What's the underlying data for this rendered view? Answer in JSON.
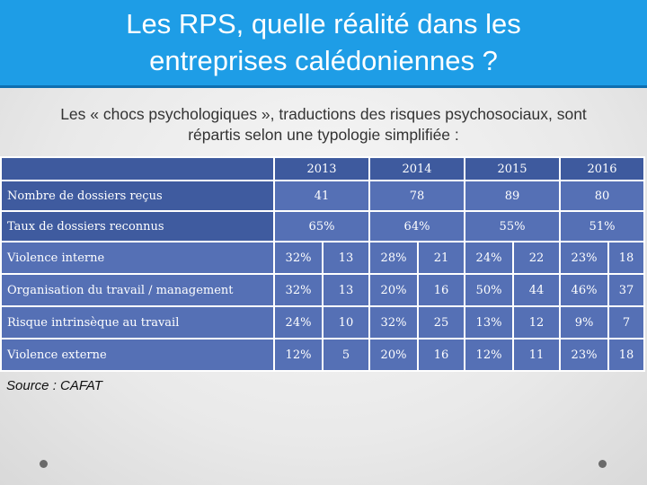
{
  "title": {
    "line1": "Les RPS, quelle réalité dans les",
    "line2": "entreprises calédoniennes ?"
  },
  "subtitle": {
    "line1": "Les « chocs psychologiques », traductions des risques psychosociaux, sont",
    "line2": "répartis selon une typologie simplifiée :"
  },
  "table": {
    "years": [
      "2013",
      "2014",
      "2015",
      "2016"
    ],
    "summary_rows": [
      {
        "label": "Nombre de dossiers reçus",
        "values": [
          "41",
          "78",
          "89",
          "80"
        ]
      },
      {
        "label": "Taux de dossiers reconnus",
        "values": [
          "65%",
          "64%",
          "55%",
          "51%"
        ]
      }
    ],
    "category_rows": [
      {
        "label": "Violence interne",
        "values": [
          "32%",
          "13",
          "28%",
          "21",
          "24%",
          "22",
          "23%",
          "18"
        ]
      },
      {
        "label": "Organisation du travail / management",
        "values": [
          "32%",
          "13",
          "20%",
          "16",
          "50%",
          "44",
          "46%",
          "37"
        ]
      },
      {
        "label": "Risque intrinsèque au travail",
        "values": [
          "24%",
          "10",
          "32%",
          "25",
          "13%",
          "12",
          "9%",
          "7"
        ]
      },
      {
        "label": "Violence externe",
        "values": [
          "12%",
          "5",
          "20%",
          "16",
          "12%",
          "11",
          "23%",
          "18"
        ]
      }
    ]
  },
  "source": "Source : CAFAT"
}
